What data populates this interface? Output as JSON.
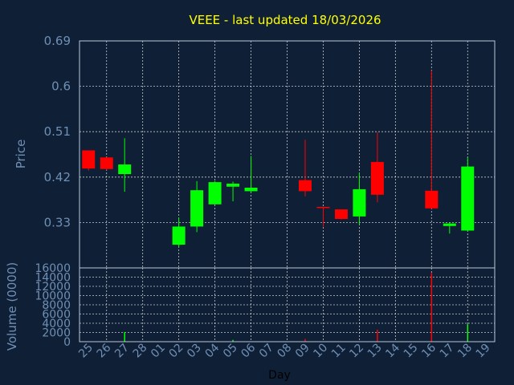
{
  "chart_data": [
    {
      "type": "candlestick",
      "title": "VEEE - last updated 18/03/2026",
      "ylabel": "Price",
      "xlabel": "Day",
      "ylim": [
        0.24,
        0.69
      ],
      "yticks": [
        "0.69",
        "0.6",
        "0.51",
        "0.42",
        "0.33"
      ],
      "yticks_values": [
        0.69,
        0.6,
        0.51,
        0.42,
        0.33
      ],
      "grid": true,
      "colors": {
        "up": "#00ff00",
        "down": "#ff0000",
        "background": "#0f2036"
      },
      "categories": [
        "25",
        "26",
        "27",
        "28",
        "01",
        "02",
        "03",
        "04",
        "05",
        "06",
        "07",
        "08",
        "09",
        "10",
        "11",
        "12",
        "13",
        "14",
        "15",
        "16",
        "17",
        "18",
        "19"
      ],
      "candles": [
        {
          "x": "25",
          "open": 0.473,
          "high": 0.473,
          "low": 0.433,
          "close": 0.437
        },
        {
          "x": "26",
          "open": 0.459,
          "high": 0.459,
          "low": 0.434,
          "close": 0.436
        },
        {
          "x": "27",
          "open": 0.426,
          "high": 0.497,
          "low": 0.391,
          "close": 0.445
        },
        {
          "x": "02",
          "open": 0.286,
          "high": 0.34,
          "low": 0.281,
          "close": 0.322
        },
        {
          "x": "03",
          "open": 0.322,
          "high": 0.412,
          "low": 0.311,
          "close": 0.394
        },
        {
          "x": "04",
          "open": 0.366,
          "high": 0.412,
          "low": 0.366,
          "close": 0.41
        },
        {
          "x": "05",
          "open": 0.401,
          "high": 0.411,
          "low": 0.372,
          "close": 0.407
        },
        {
          "x": "06",
          "open": 0.392,
          "high": 0.462,
          "low": 0.39,
          "close": 0.399
        },
        {
          "x": "09",
          "open": 0.414,
          "high": 0.494,
          "low": 0.382,
          "close": 0.392
        },
        {
          "x": "10",
          "open": 0.361,
          "high": 0.361,
          "low": 0.322,
          "close": 0.359
        },
        {
          "x": "11",
          "open": 0.356,
          "high": 0.356,
          "low": 0.336,
          "close": 0.337
        },
        {
          "x": "12",
          "open": 0.342,
          "high": 0.429,
          "low": 0.326,
          "close": 0.396
        },
        {
          "x": "13",
          "open": 0.45,
          "high": 0.509,
          "low": 0.37,
          "close": 0.385
        },
        {
          "x": "16",
          "open": 0.393,
          "high": 0.631,
          "low": 0.357,
          "close": 0.358
        },
        {
          "x": "17",
          "open": 0.323,
          "high": 0.33,
          "low": 0.308,
          "close": 0.328
        },
        {
          "x": "18",
          "open": 0.314,
          "high": 0.46,
          "low": 0.313,
          "close": 0.441
        }
      ]
    },
    {
      "type": "bar",
      "ylabel": "Volume (0000)",
      "ylim": [
        0,
        16000
      ],
      "yticks": [
        "16000",
        "14000",
        "12000",
        "10000",
        "8000",
        "6000",
        "4000",
        "2000",
        "0"
      ],
      "yticks_values": [
        16000,
        14000,
        12000,
        10000,
        8000,
        6000,
        4000,
        2000,
        0
      ],
      "grid": true,
      "bars": [
        {
          "x": "27",
          "value": 2100,
          "color": "#00ff00"
        },
        {
          "x": "05",
          "value": 400,
          "color": "#00ff00"
        },
        {
          "x": "09",
          "value": 600,
          "color": "#ff0000"
        },
        {
          "x": "13",
          "value": 2600,
          "color": "#ff0000"
        },
        {
          "x": "16",
          "value": 14900,
          "color": "#ff0000"
        },
        {
          "x": "18",
          "value": 3800,
          "color": "#00ff00"
        }
      ]
    }
  ]
}
